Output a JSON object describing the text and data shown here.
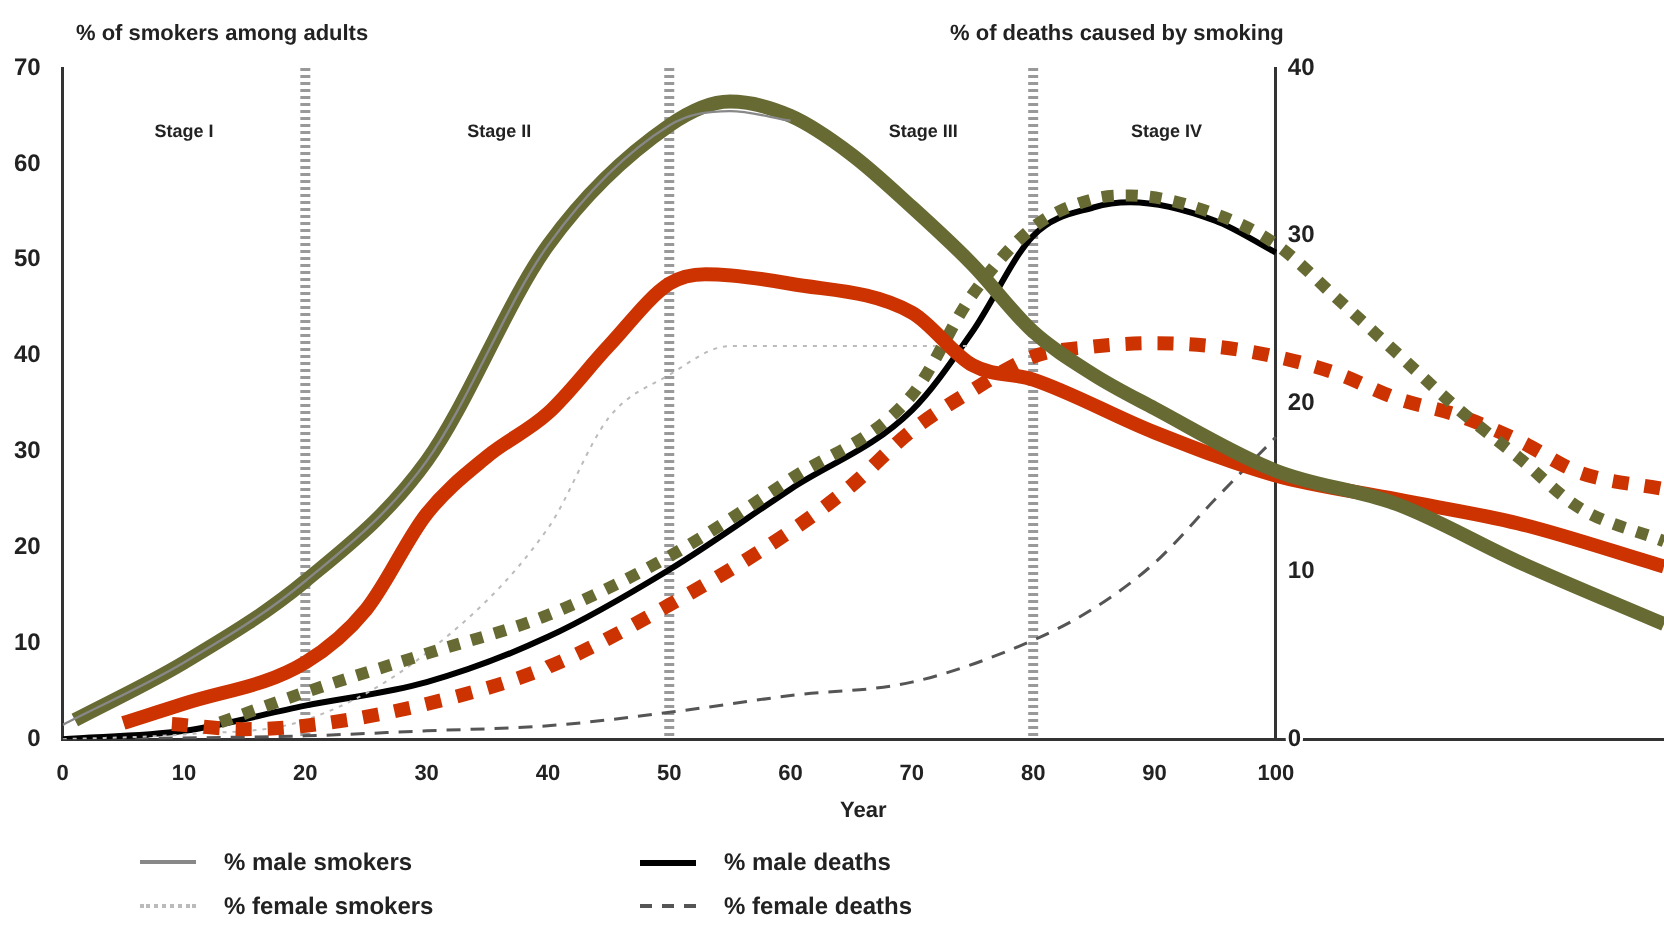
{
  "chart_data": {
    "type": "line",
    "xlabel": "Year",
    "ylabel": "% of smokers among adults",
    "y2label": "% of deaths caused by smoking",
    "xlim": [
      0,
      132
    ],
    "xticks": [
      0,
      10,
      20,
      30,
      40,
      50,
      60,
      70,
      80,
      90,
      100
    ],
    "ylim": [
      0,
      70
    ],
    "yticks": [
      0,
      10,
      20,
      30,
      40,
      50,
      60,
      70
    ],
    "y2lim": [
      0,
      40
    ],
    "y2ticks": [
      0,
      10,
      20,
      30,
      40
    ],
    "grid": false,
    "legend": "bottom",
    "marker": "none",
    "ref_lines": [
      {
        "axis": "x",
        "value": 20,
        "line_style": "dashed",
        "color": "#999999"
      },
      {
        "axis": "x",
        "value": 50,
        "line_style": "dashed",
        "color": "#999999"
      },
      {
        "axis": "x",
        "value": 80,
        "line_style": "dashed",
        "color": "#999999"
      }
    ],
    "annotations": [
      "Stage I",
      "Stage II",
      "Stage III",
      "Stage IV"
    ],
    "series": [
      {
        "name": "% male smokers",
        "color": "#888888",
        "line_style": "solid",
        "x": [
          0,
          10,
          20,
          30,
          40,
          50,
          55,
          60
        ],
        "values": [
          1.5,
          8,
          16.5,
          29,
          51.5,
          64,
          65.5,
          64.5
        ]
      },
      {
        "name": "% female smokers",
        "color": "#bbbbbb",
        "line_style": "dotted",
        "x": [
          0,
          10,
          20,
          30,
          40,
          45,
          50,
          55,
          60,
          70,
          75
        ],
        "values": [
          0,
          0.5,
          2,
          9,
          22,
          33.5,
          38,
          41,
          41,
          41,
          41
        ]
      },
      {
        "name": "% male deaths",
        "color": "#000000",
        "line_style": "solid",
        "axis": "y2",
        "x": [
          0,
          10,
          20,
          30,
          40,
          50,
          60,
          70,
          75,
          80,
          85,
          88,
          95,
          100
        ],
        "values": [
          0,
          0.5,
          2,
          3.4,
          6.1,
          10.1,
          14.9,
          19.6,
          24.3,
          30,
          31.7,
          32,
          30.9,
          29
        ]
      },
      {
        "name": "% female deaths",
        "color": "#555555",
        "line_style": "dashed",
        "axis": "y2",
        "x": [
          0,
          20,
          30,
          40,
          50,
          60,
          70,
          80,
          85,
          90,
          95,
          100
        ],
        "values": [
          0,
          0.2,
          0.5,
          0.8,
          1.6,
          2.6,
          3.4,
          5.9,
          7.8,
          10.5,
          14.3,
          18
        ]
      },
      {
        "color": "#676a33",
        "line_style": "solid",
        "x": [
          1,
          10,
          20,
          30,
          40,
          50,
          55,
          60,
          65,
          70,
          75,
          80,
          85,
          90,
          100,
          110,
          120,
          132
        ],
        "values": [
          2,
          8,
          16.5,
          29,
          51.5,
          64,
          66.5,
          65,
          61,
          55.5,
          49.5,
          42.5,
          38,
          34.5,
          28,
          24.5,
          18.5,
          12
        ]
      },
      {
        "color": "#cc3300",
        "line_style": "solid",
        "x": [
          5,
          10,
          20,
          25,
          30,
          35,
          40,
          45,
          50,
          53,
          60,
          70,
          75,
          80,
          90,
          100,
          110,
          120,
          132
        ],
        "values": [
          1.7,
          3.7,
          8,
          13.5,
          23.5,
          29.5,
          34,
          41,
          47.5,
          48.5,
          47.5,
          44.5,
          39,
          37.5,
          32,
          27.5,
          25,
          22.5,
          18
        ]
      },
      {
        "color": "#676a33",
        "line_style": "dotted",
        "axis": "y2",
        "x": [
          13,
          20,
          30,
          40,
          50,
          60,
          70,
          75,
          80,
          85,
          88,
          95,
          100,
          105,
          110,
          115,
          120,
          125,
          132
        ],
        "values": [
          1,
          2.8,
          5.1,
          7.4,
          10.9,
          15.5,
          20.5,
          26.5,
          30.5,
          32.2,
          32.4,
          31.3,
          29.5,
          26.3,
          23,
          19.7,
          16.8,
          13.8,
          11.8
        ]
      },
      {
        "color": "#cc3300",
        "line_style": "dotted",
        "axis": "y2",
        "x": [
          9,
          15,
          20,
          30,
          40,
          50,
          60,
          65,
          70,
          75,
          80,
          85,
          90,
          95,
          100,
          105,
          110,
          115,
          120,
          125,
          132
        ],
        "values": [
          0.9,
          0.6,
          0.8,
          2.1,
          4.3,
          8,
          12.4,
          15.1,
          18.4,
          20.8,
          22.8,
          23.4,
          23.6,
          23.4,
          22.8,
          21.8,
          20.3,
          19.3,
          17.8,
          15.9,
          14.9
        ]
      }
    ]
  }
}
